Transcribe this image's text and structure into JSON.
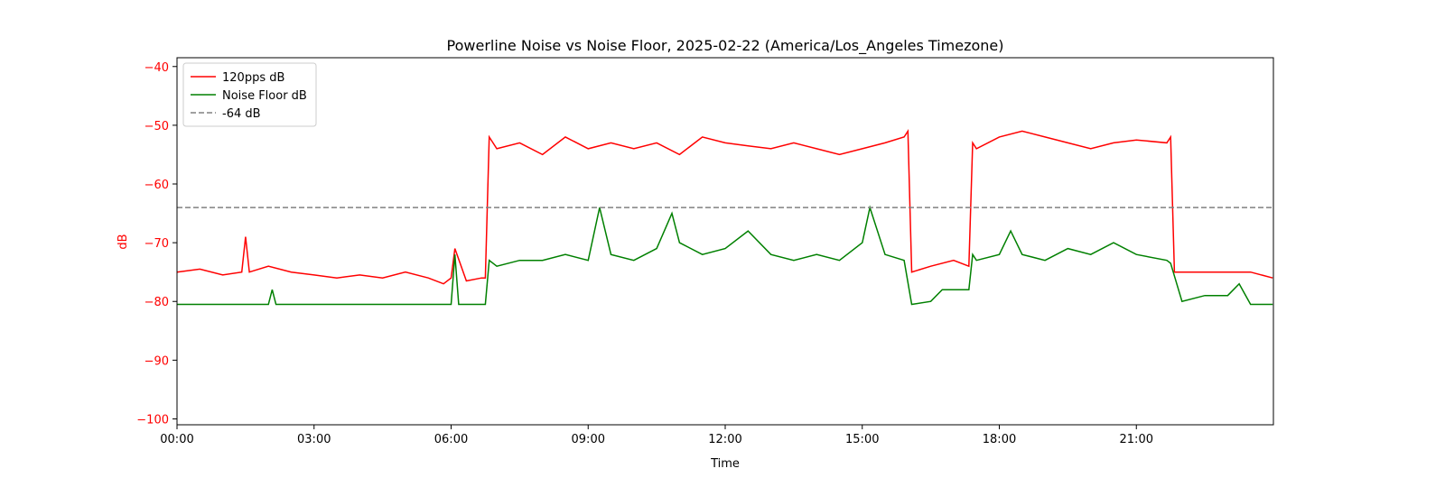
{
  "chart_data": {
    "type": "line",
    "title": "Powerline Noise vs Noise Floor, 2025-02-22 (America/Los_Angeles Timezone)",
    "xlabel": "Time",
    "ylabel": "dB",
    "x_unit": "hours",
    "xlim": [
      "00:00",
      "24:00"
    ],
    "ylim": [
      -101,
      -38.5
    ],
    "x_ticks": [
      "00:00",
      "03:00",
      "06:00",
      "09:00",
      "12:00",
      "15:00",
      "18:00",
      "21:00"
    ],
    "y_ticks": [
      -40,
      -50,
      -60,
      -70,
      -80,
      -90,
      -100
    ],
    "y_tick_color": "#ff0000",
    "ylabel_color": "#ff0000",
    "grid": false,
    "legend_position": "top-left",
    "series": [
      {
        "name": "120pps dB",
        "color": "#ff0000",
        "style": "solid",
        "x": [
          "00:00",
          "00:30",
          "01:00",
          "01:25",
          "01:30",
          "01:35",
          "02:00",
          "02:30",
          "03:00",
          "03:30",
          "04:00",
          "04:30",
          "05:00",
          "05:30",
          "05:50",
          "06:00",
          "06:05",
          "06:20",
          "06:40",
          "06:45",
          "06:50",
          "07:00",
          "07:30",
          "08:00",
          "08:30",
          "09:00",
          "09:30",
          "10:00",
          "10:30",
          "11:00",
          "11:30",
          "12:00",
          "12:30",
          "13:00",
          "13:30",
          "14:00",
          "14:30",
          "15:00",
          "15:30",
          "15:55",
          "16:00",
          "16:05",
          "16:30",
          "17:00",
          "17:20",
          "17:25",
          "17:30",
          "18:00",
          "18:30",
          "19:00",
          "19:30",
          "20:00",
          "20:30",
          "21:00",
          "21:40",
          "21:45",
          "21:50",
          "22:00",
          "22:30",
          "23:00",
          "23:30",
          "23:59"
        ],
        "values": [
          -75,
          -74.5,
          -75.5,
          -75,
          -69,
          -75,
          -74,
          -75,
          -75.5,
          -76,
          -75.5,
          -76,
          -75,
          -76,
          -77,
          -76,
          -71,
          -76.5,
          -76,
          -76,
          -52,
          -54,
          -53,
          -55,
          -52,
          -54,
          -53,
          -54,
          -53,
          -55,
          -52,
          -53,
          -53.5,
          -54,
          -53,
          -54,
          -55,
          -54,
          -53,
          -52,
          -51,
          -75,
          -74,
          -73,
          -74,
          -53,
          -54,
          -52,
          -51,
          -52,
          -53,
          -54,
          -53,
          -52.5,
          -53,
          -52,
          -75,
          -75,
          -75,
          -75,
          -75,
          -76
        ]
      },
      {
        "name": "Noise Floor dB",
        "color": "#008000",
        "style": "solid",
        "x": [
          "00:00",
          "01:00",
          "02:00",
          "02:05",
          "02:10",
          "03:00",
          "04:00",
          "05:00",
          "05:50",
          "06:00",
          "06:05",
          "06:10",
          "06:45",
          "06:50",
          "07:00",
          "07:30",
          "08:00",
          "08:30",
          "09:00",
          "09:15",
          "09:30",
          "10:00",
          "10:30",
          "10:50",
          "11:00",
          "11:30",
          "12:00",
          "12:30",
          "13:00",
          "13:30",
          "14:00",
          "14:30",
          "15:00",
          "15:10",
          "15:30",
          "15:55",
          "16:05",
          "16:30",
          "16:45",
          "17:20",
          "17:25",
          "17:30",
          "18:00",
          "18:15",
          "18:30",
          "19:00",
          "19:30",
          "20:00",
          "20:30",
          "21:00",
          "21:40",
          "21:45",
          "22:00",
          "22:30",
          "23:00",
          "23:15",
          "23:30",
          "23:59"
        ],
        "values": [
          -80.5,
          -80.5,
          -80.5,
          -78,
          -80.5,
          -80.5,
          -80.5,
          -80.5,
          -80.5,
          -80.5,
          -72,
          -80.5,
          -80.5,
          -73,
          -74,
          -73,
          -73,
          -72,
          -73,
          -64,
          -72,
          -73,
          -71,
          -65,
          -70,
          -72,
          -71,
          -68,
          -72,
          -73,
          -72,
          -73,
          -70,
          -64,
          -72,
          -73,
          -80.5,
          -80,
          -78,
          -78,
          -72,
          -73,
          -72,
          -68,
          -72,
          -73,
          -71,
          -72,
          -70,
          -72,
          -73,
          -73.5,
          -80,
          -79,
          -79,
          -77,
          -80.5,
          -80.5
        ]
      },
      {
        "name": "-64 dB",
        "color": "#808080",
        "style": "dashed",
        "x": [
          "00:00",
          "23:59"
        ],
        "values": [
          -64,
          -64
        ]
      }
    ]
  }
}
